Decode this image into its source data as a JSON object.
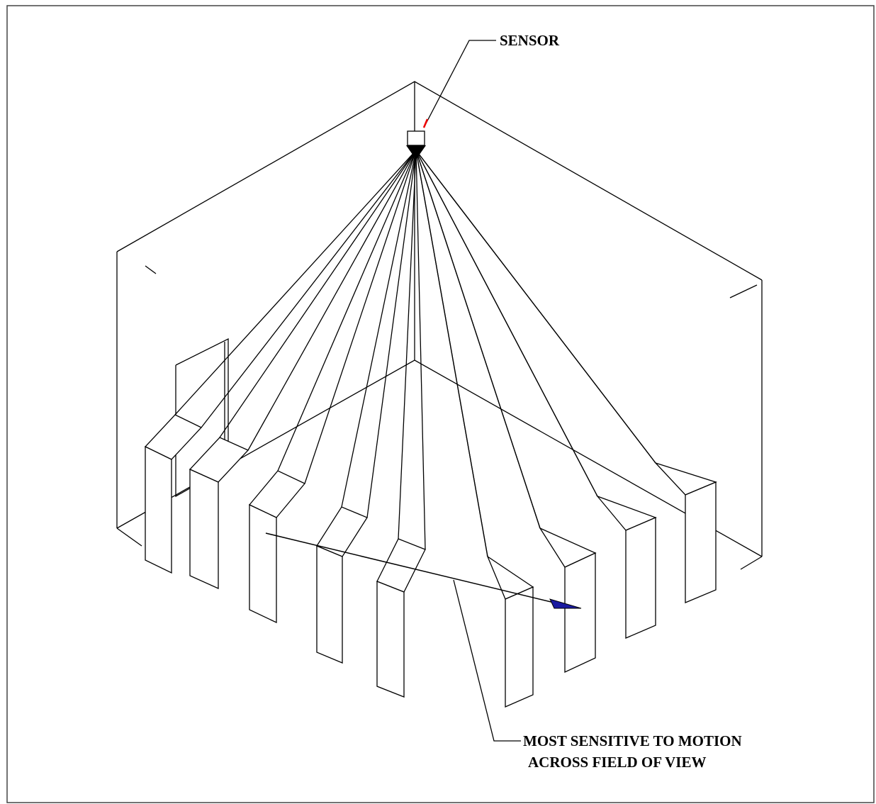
{
  "labels": {
    "sensor": "SENSOR",
    "note": [
      "MOST SENSITIVE TO MOTION",
      "ACROSS FIELD OF VIEW"
    ]
  }
}
